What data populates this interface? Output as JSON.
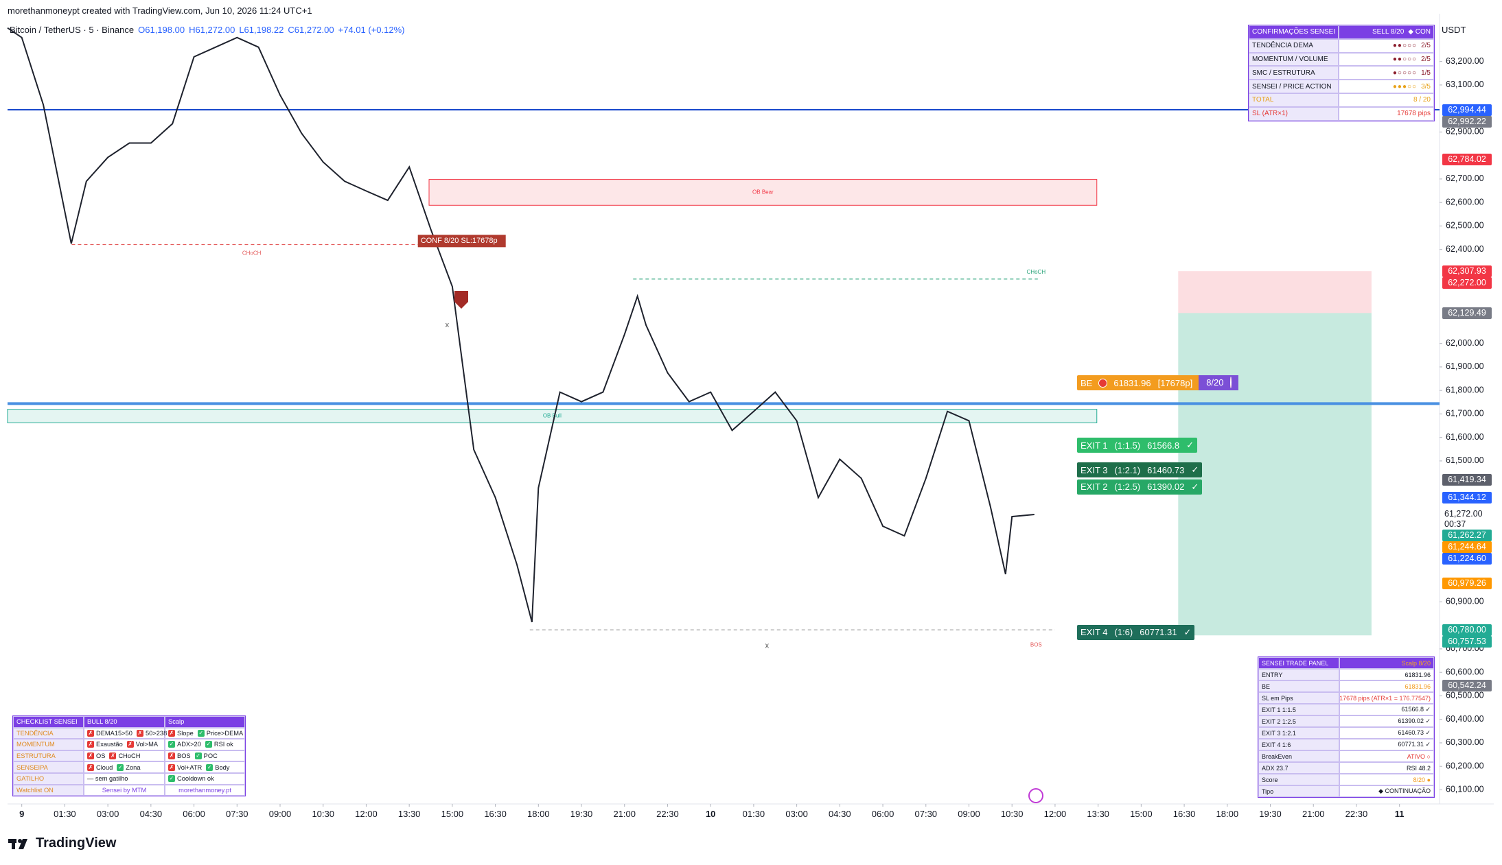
{
  "header": {
    "credit": "morethanmoneypt created with TradingView.com, Jun 10, 2026 11:24 UTC+1",
    "symbol": "Bitcoin / TetherUS · 5 · Binance",
    "ohlc": [
      "O61,198.00",
      "H61,272.00",
      "L61,198.22",
      "C61,272.00",
      "+74.01 (+0.12%)"
    ],
    "currency": "USDT"
  },
  "chart_data": {
    "type": "line",
    "color": "#1e222d",
    "x": [
      -0.33,
      0,
      0.5,
      1.15,
      1.5,
      2,
      2.5,
      3,
      3.5,
      4,
      4.5,
      5,
      5.5,
      6,
      6.5,
      7,
      7.5,
      8,
      8.5,
      9,
      9.5,
      10,
      10.5,
      11,
      11.5,
      11.85,
      12,
      12.5,
      13,
      13.5,
      14,
      14.3,
      14.5,
      15,
      15.5,
      16,
      16.5,
      17,
      17.5,
      18,
      18.5,
      19,
      19.5,
      20,
      20.5,
      21,
      21.5,
      22,
      22.5,
      22.85,
      23,
      23.52
    ],
    "values": [
      63343,
      63302,
      63016,
      62425,
      62690,
      62792,
      62853,
      62853,
      62935,
      63220,
      63261,
      63302,
      63261,
      63057,
      62894,
      62772,
      62690,
      62649,
      62609,
      62751,
      62486,
      62242,
      61548,
      61344,
      61059,
      60814,
      61385,
      61793,
      61752,
      61793,
      62038,
      62201,
      62078,
      61875,
      61752,
      61793,
      61630,
      61711,
      61793,
      61671,
      61344,
      61507,
      61426,
      61222,
      61181,
      61426,
      61711,
      61671,
      61304,
      61018,
      61263,
      61272
    ],
    "xlim": [
      -0.33,
      32.93
    ],
    "xticks": [
      {
        "value": 0,
        "label": "9"
      },
      {
        "value": 1,
        "label": "01:30"
      },
      {
        "value": 2,
        "label": "03:00"
      },
      {
        "value": 3,
        "label": "04:30"
      },
      {
        "value": 4,
        "label": "06:00"
      },
      {
        "value": 5,
        "label": "07:30"
      },
      {
        "value": 6,
        "label": "09:00"
      },
      {
        "value": 7,
        "label": "10:30"
      },
      {
        "value": 8,
        "label": "12:00"
      },
      {
        "value": 9,
        "label": "13:30"
      },
      {
        "value": 10,
        "label": "15:00"
      },
      {
        "value": 11,
        "label": "16:30"
      },
      {
        "value": 12,
        "label": "18:00"
      },
      {
        "value": 13,
        "label": "19:30"
      },
      {
        "value": 14,
        "label": "21:00"
      },
      {
        "value": 15,
        "label": "22:30"
      },
      {
        "value": 16,
        "label": "10"
      },
      {
        "value": 17,
        "label": "01:30"
      },
      {
        "value": 18,
        "label": "03:00"
      },
      {
        "value": 19,
        "label": "04:30"
      },
      {
        "value": 20,
        "label": "06:00"
      },
      {
        "value": 21,
        "label": "07:30"
      },
      {
        "value": 22,
        "label": "09:00"
      },
      {
        "value": 23,
        "label": "10:30"
      },
      {
        "value": 24,
        "label": "12:00"
      },
      {
        "value": 25,
        "label": "13:30"
      },
      {
        "value": 26,
        "label": "15:00"
      },
      {
        "value": 27,
        "label": "16:30"
      },
      {
        "value": 28,
        "label": "18:00"
      },
      {
        "value": 29,
        "label": "19:30"
      },
      {
        "value": 30,
        "label": "21:00"
      },
      {
        "value": 31,
        "label": "22:30"
      },
      {
        "value": 32,
        "label": "11"
      }
    ],
    "ylim": [
      60040,
      63380
    ],
    "yticks": [
      {
        "value": 63200,
        "label": "63,200.00"
      },
      {
        "value": 63100,
        "label": "63,100.00"
      },
      {
        "value": 62900,
        "label": "62,900.00"
      },
      {
        "value": 62700,
        "label": "62,700.00"
      },
      {
        "value": 62600,
        "label": "62,600.00"
      },
      {
        "value": 62500,
        "label": "62,500.00"
      },
      {
        "value": 62400,
        "label": "62,400.00"
      },
      {
        "value": 62000,
        "label": "62,000.00"
      },
      {
        "value": 61900,
        "label": "61,900.00"
      },
      {
        "value": 61800,
        "label": "61,800.00"
      },
      {
        "value": 61700,
        "label": "61,700.00"
      },
      {
        "value": 61600,
        "label": "61,600.00"
      },
      {
        "value": 61500,
        "label": "61,500.00"
      },
      {
        "value": 60900,
        "label": "60,900.00"
      },
      {
        "value": 60700,
        "label": "60,700.00"
      },
      {
        "value": 60600,
        "label": "60,600.00"
      },
      {
        "value": 60500,
        "label": "60,500.00"
      },
      {
        "value": 60400,
        "label": "60,400.00"
      },
      {
        "value": 60300,
        "label": "60,300.00"
      },
      {
        "value": 60200,
        "label": "60,200.00"
      },
      {
        "value": 60100,
        "label": "60,100.00"
      }
    ],
    "price_labels": [
      {
        "value": 62994.44,
        "label": "62,994.44",
        "color": "#2962ff"
      },
      {
        "value": 62992.22,
        "label": "62,992.22",
        "color": "#787b86"
      },
      {
        "value": 62784.02,
        "label": "62,784.02",
        "color": "#f23645"
      },
      {
        "value": 62307.93,
        "label": "62,307.93",
        "color": "#f23645"
      },
      {
        "value": 62272,
        "label": "62,272.00",
        "color": "#f23645"
      },
      {
        "value": 62129.49,
        "label": "62,129.49",
        "color": "#787b86"
      },
      {
        "value": 61419.34,
        "label": "61,419.34",
        "color": "#5d606b"
      },
      {
        "value": 61344.12,
        "label": "61,344.12",
        "color": "#2962ff"
      },
      {
        "value": 61262.27,
        "label": "61,262.27",
        "color": "#22ab94"
      },
      {
        "value": 61244.64,
        "label": "61,244.64",
        "color": "#ff9800"
      },
      {
        "value": 61224.6,
        "label": "61,224.60",
        "color": "#2962ff"
      },
      {
        "value": 60979.26,
        "label": "60,979.26",
        "color": "#ff9800"
      },
      {
        "value": 60780,
        "label": "60,780.00",
        "color": "#22ab94"
      },
      {
        "value": 60757.53,
        "label": "60,757.53",
        "color": "#22ab94"
      },
      {
        "value": 60542.24,
        "label": "60,542.24",
        "color": "#787b86"
      }
    ],
    "last_price": {
      "value": 61272,
      "label": "61,272.00",
      "countdown": "00:37"
    },
    "levels": [
      {
        "value": 62994.44,
        "color": "#1848cc",
        "style": "thin"
      },
      {
        "value": 61744,
        "color": "#4a90e2",
        "style": "thick"
      }
    ],
    "segments": [
      {
        "value": 62421,
        "x": [
          1.16,
          9.3
        ],
        "color": "#e45b5b"
      },
      {
        "value": 62274,
        "x": [
          14.2,
          23.6
        ],
        "color": "#2aa37a"
      },
      {
        "value": 60781,
        "x": [
          11.8,
          24.0
        ],
        "color": "#999999"
      }
    ],
    "zones": [
      {
        "label": "OB Bear",
        "from": 62698,
        "to": 62588,
        "x": [
          9.46,
          24.97
        ],
        "color": "#f23645"
      },
      {
        "label": "OB Bull",
        "from": 61720,
        "to": 61662,
        "x": [
          -0.33,
          24.97
        ],
        "color": "#22ab94"
      },
      {
        "from": 62307.93,
        "to": 62129.49,
        "x": [
          26.86,
          31.35
        ],
        "color": "#f7a1aa"
      },
      {
        "from": 62129.49,
        "to": 60757.53,
        "x": [
          26.86,
          31.35
        ],
        "color": "#5fc4a4"
      }
    ],
    "annotations": [
      {
        "text": "CHoCH",
        "x": 5.34,
        "y": 62384,
        "color": "#e45b5b"
      },
      {
        "text": "CHoCH",
        "x": 23.56,
        "y": 62303,
        "color": "#2aa37a"
      },
      {
        "text": "BOS",
        "x": 23.56,
        "y": 60716,
        "color": "#e45b5b"
      },
      {
        "text": "x",
        "x": 9.88,
        "y": 62078,
        "color": "#555555"
      },
      {
        "text": "x",
        "x": 17.31,
        "y": 60712,
        "color": "#555555"
      }
    ],
    "signal": {
      "text": "CONF 8/20  SL:17678p",
      "x": 9.2,
      "y": 62436,
      "color": "#b03a2e"
    }
  },
  "trade_labels": {
    "be": {
      "name": "BE",
      "value": 61831.96,
      "pips": "[17678p]",
      "score": "8/20",
      "color": "#f39c1f"
    },
    "exits": [
      {
        "name": "EXIT 1",
        "ratio": "(1:1.5)",
        "value": 61566.8,
        "check": "✓",
        "color": "#2ebd6b"
      },
      {
        "name": "EXIT 3",
        "ratio": "(1:2.1)",
        "value": 61460.73,
        "check": "✓",
        "color": "#1e6e4a"
      },
      {
        "name": "EXIT 2",
        "ratio": "(1:2.5)",
        "value": 61390.02,
        "check": "✓",
        "color": "#27a866"
      },
      {
        "name": "EXIT 4",
        "ratio": "(1:6)",
        "value": 60771.31,
        "check": "✓",
        "color": "#1e6e5a"
      }
    ]
  },
  "confirmations": {
    "title": "CONFIRMAÇÕES SENSEI",
    "signal": "SELL  8/20",
    "mode": "◆ CON",
    "rows": [
      {
        "label": "TENDÊNCIA DEMA",
        "dots": "●●○○○",
        "score": "2/5",
        "color": "#8b1e2d"
      },
      {
        "label": "MOMENTUM / VOLUME",
        "dots": "●●○○○",
        "score": "2/5",
        "color": "#8b1e2d"
      },
      {
        "label": "SMC / ESTRUTURA",
        "dots": "●○○○○",
        "score": "1/5",
        "color": "#8b1e2d"
      },
      {
        "label": "SENSEI / PRICE ACTION",
        "dots": "●●●○○",
        "score": "3/5",
        "color": "#e8a21a"
      },
      {
        "label": "TOTAL",
        "score": "8 / 20",
        "color": "#e8a21a"
      },
      {
        "label": "SL  (ATR×1)",
        "score": "17678 pips",
        "color": "#e53935"
      }
    ]
  },
  "checklist": {
    "title": "CHECKLIST SENSEI",
    "signal": "BULL  8/20",
    "mode": "Scalp",
    "rows": [
      {
        "label": "TENDÊNCIA",
        "a": [
          {
            "ok": false,
            "icon": "✗",
            "text": "DEMA15>50"
          },
          {
            "ok": false,
            "icon": "✗",
            "text": "50>238"
          }
        ],
        "b": [
          {
            "ok": false,
            "icon": "✗",
            "text": "Slope"
          },
          {
            "ok": true,
            "icon": "✓",
            "text": "Price>DEMA"
          }
        ]
      },
      {
        "label": "MOMENTUM",
        "a": [
          {
            "ok": false,
            "icon": "✗",
            "text": "Exaustão"
          },
          {
            "ok": false,
            "icon": "✗",
            "text": "Vol>MA"
          }
        ],
        "b": [
          {
            "ok": true,
            "icon": "✓",
            "text": "ADX>20"
          },
          {
            "ok": true,
            "icon": "✓",
            "text": "RSI ok"
          }
        ]
      },
      {
        "label": "ESTRUTURA",
        "a": [
          {
            "ok": false,
            "icon": "✗",
            "text": "OS"
          },
          {
            "ok": false,
            "icon": "✗",
            "text": "CHoCH"
          }
        ],
        "b": [
          {
            "ok": false,
            "icon": "✗",
            "text": "BOS"
          },
          {
            "ok": true,
            "icon": "✓",
            "text": "POC"
          }
        ]
      },
      {
        "label": "SENSEIPA",
        "a": [
          {
            "ok": false,
            "icon": "✗",
            "text": "Cloud"
          },
          {
            "ok": true,
            "icon": "✓",
            "text": "Zona"
          }
        ],
        "b": [
          {
            "ok": false,
            "icon": "✗",
            "text": "Vol+ATR"
          },
          {
            "ok": true,
            "icon": "✓",
            "text": "Body"
          }
        ]
      },
      {
        "label": "GATILHO",
        "a": [
          {
            "text": "— sem gatilho"
          }
        ],
        "b": [
          {
            "ok": true,
            "icon": "✓",
            "text": "Cooldown ok"
          }
        ]
      }
    ],
    "footer": [
      "Watchlist ON",
      "Sensei  by MTM",
      "morethanmoney.pt"
    ]
  },
  "trade_panel": {
    "title": "SENSEI TRADE PANEL",
    "mode": "Scalp  8/20",
    "rows": [
      [
        "ENTRY",
        "61831.96"
      ],
      [
        "BE",
        "61831.96"
      ],
      [
        "SL em Pips",
        "17678 pips  (ATR×1 = 176.77547)"
      ],
      [
        "EXIT 1  1:1.5",
        "61566.8 ✓"
      ],
      [
        "EXIT 2  1:2.5",
        "61390.02 ✓"
      ],
      [
        "EXIT 3  1:2.1",
        "61460.73 ✓"
      ],
      [
        "EXIT 4  1:6",
        "60771.31 ✓"
      ],
      [
        "BreakEven",
        "ATIVO ○"
      ],
      [
        "ADX  23.7",
        "RSI  48.2"
      ],
      [
        "Score",
        "8/20 ●"
      ],
      [
        "Tipo",
        "◆ CONTINUAÇÃO"
      ]
    ]
  },
  "footer": {
    "brand": "TradingView"
  }
}
